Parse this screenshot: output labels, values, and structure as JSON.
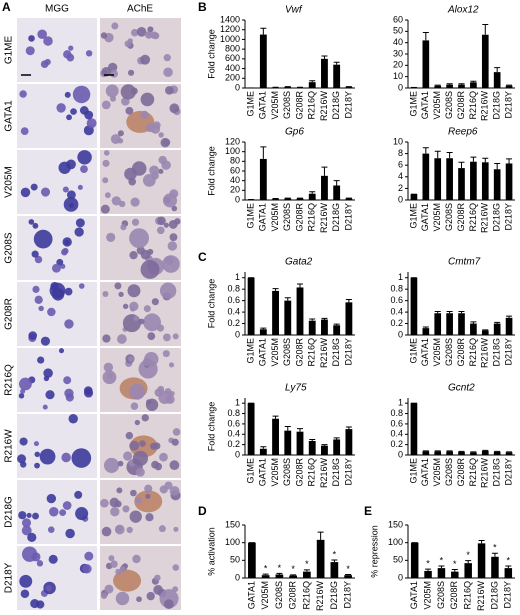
{
  "panel_labels": [
    "A",
    "B",
    "C",
    "D",
    "E"
  ],
  "micrographs": {
    "columns": [
      "MGG",
      "AChE"
    ],
    "rows": [
      "G1ME",
      "GATA1",
      "V205M",
      "G208S",
      "G208R",
      "R216Q",
      "R216W",
      "D218G",
      "D218Y"
    ]
  },
  "chart_data": [
    {
      "type": "bar",
      "title": "Vwf",
      "ylabel": "Fold change",
      "color": "#000000",
      "categories": [
        "G1ME",
        "GATA1",
        "V205M",
        "G208S",
        "G208R",
        "R216Q",
        "R216W",
        "D218G",
        "D218Y"
      ],
      "values": [
        1,
        1100,
        10,
        20,
        10,
        120,
        600,
        480,
        20
      ],
      "errors": [
        0,
        130,
        5,
        8,
        5,
        30,
        60,
        50,
        8
      ],
      "ylim": [
        0,
        1400
      ],
      "yticks": [
        0,
        200,
        400,
        600,
        800,
        1000,
        1200,
        1400
      ]
    },
    {
      "type": "bar",
      "title": "Alox12",
      "color": "#000000",
      "categories": [
        "G1ME",
        "GATA1",
        "V205M",
        "G208S",
        "G208R",
        "R216Q",
        "R216W",
        "D218G",
        "D218Y"
      ],
      "values": [
        0.5,
        42,
        2,
        3,
        3,
        5,
        47,
        14,
        2
      ],
      "errors": [
        0,
        7,
        0.5,
        0.8,
        0.8,
        1,
        9,
        4,
        0.5
      ],
      "ylim": [
        0,
        60
      ],
      "yticks": [
        0,
        10,
        20,
        30,
        40,
        50,
        60
      ]
    },
    {
      "type": "bar",
      "title": "Gp6",
      "ylabel": "Fold change",
      "color": "#000000",
      "categories": [
        "G1ME",
        "GATA1",
        "V205M",
        "G208S",
        "G208R",
        "R216Q",
        "R216W",
        "D218G",
        "D218Y"
      ],
      "values": [
        1,
        85,
        2,
        3,
        3,
        13,
        50,
        30,
        3
      ],
      "errors": [
        0,
        25,
        1,
        1,
        1,
        4,
        18,
        10,
        1
      ],
      "ylim": [
        0,
        120
      ],
      "yticks": [
        0,
        20,
        40,
        60,
        80,
        100,
        120
      ]
    },
    {
      "type": "bar",
      "title": "Reep6",
      "color": "#000000",
      "categories": [
        "G1ME",
        "GATA1",
        "V205M",
        "G208S",
        "G208R",
        "R216Q",
        "R216W",
        "D218G",
        "D218Y"
      ],
      "values": [
        1,
        8,
        7.2,
        7.2,
        5.5,
        6.6,
        6.5,
        5.3,
        6.3
      ],
      "errors": [
        0,
        1,
        1.2,
        1,
        1,
        0.8,
        0.7,
        1,
        0.8
      ],
      "ylim": [
        0,
        10
      ],
      "yticks": [
        0,
        2,
        4,
        6,
        8,
        10
      ]
    },
    {
      "type": "bar",
      "title": "Gata2",
      "ylabel": "Fold change",
      "color": "#000000",
      "categories": [
        "G1ME",
        "GATA1",
        "V205M",
        "G208S",
        "G208R",
        "R216Q",
        "R216W",
        "D218G",
        "D218Y"
      ],
      "values": [
        1,
        0.1,
        0.77,
        0.6,
        0.83,
        0.25,
        0.27,
        0.17,
        0.57
      ],
      "errors": [
        0,
        0.02,
        0.04,
        0.05,
        0.06,
        0.03,
        0.02,
        0.02,
        0.05
      ],
      "ylim": [
        0,
        1.1
      ],
      "yticks": [
        0,
        0.2,
        0.4,
        0.6,
        0.8,
        1
      ]
    },
    {
      "type": "bar",
      "title": "Cmtm7",
      "color": "#000000",
      "categories": [
        "G1ME",
        "GATA1",
        "V205M",
        "G208S",
        "G208R",
        "R216Q",
        "R216W",
        "D218G",
        "D218Y"
      ],
      "values": [
        1,
        0.12,
        0.38,
        0.38,
        0.38,
        0.2,
        0.08,
        0.2,
        0.3
      ],
      "errors": [
        0,
        0.02,
        0.03,
        0.03,
        0.03,
        0.03,
        0.01,
        0.02,
        0.03
      ],
      "ylim": [
        0,
        1.1
      ],
      "yticks": [
        0,
        0.2,
        0.4,
        0.6,
        0.8,
        1
      ]
    },
    {
      "type": "bar",
      "title": "Ly75",
      "ylabel": "Fold change",
      "color": "#000000",
      "categories": [
        "G1ME",
        "GATA1",
        "V205M",
        "G208S",
        "G208R",
        "R216Q",
        "R216W",
        "D218G",
        "D218Y"
      ],
      "values": [
        1,
        0.12,
        0.7,
        0.47,
        0.45,
        0.27,
        0.18,
        0.3,
        0.5
      ],
      "errors": [
        0,
        0.04,
        0.05,
        0.08,
        0.06,
        0.03,
        0.02,
        0.03,
        0.04
      ],
      "ylim": [
        0,
        1.1
      ],
      "yticks": [
        0,
        0.2,
        0.4,
        0.6,
        0.8,
        1
      ]
    },
    {
      "type": "bar",
      "title": "Gcnt2",
      "color": "#000000",
      "categories": [
        "G1ME",
        "GATA1",
        "V205M",
        "G208S",
        "G208R",
        "R216Q",
        "R216W",
        "D218G",
        "D218Y"
      ],
      "values": [
        1,
        0.07,
        0.07,
        0.07,
        0.06,
        0.05,
        0.08,
        0.06,
        0.05
      ],
      "errors": [
        0,
        0.01,
        0.01,
        0.01,
        0.01,
        0.01,
        0.01,
        0.01,
        0.01
      ],
      "ylim": [
        0,
        1.1
      ],
      "yticks": [
        0,
        0.2,
        0.4,
        0.6,
        0.8,
        1
      ]
    },
    {
      "type": "bar",
      "ylabel": "% activation",
      "color": "#000000",
      "categories": [
        "GATA1",
        "V205M",
        "G208S",
        "G208R",
        "R216Q",
        "R216W",
        "D218G",
        "D218Y"
      ],
      "values": [
        100,
        8,
        10,
        7,
        18,
        108,
        45,
        8
      ],
      "errors": [
        0,
        3,
        3,
        2,
        5,
        22,
        6,
        2
      ],
      "markers": [
        null,
        "*",
        "*",
        "*",
        "*",
        null,
        "*",
        "*"
      ],
      "ylim": [
        0,
        150
      ],
      "yticks": [
        0,
        50,
        100,
        150
      ]
    },
    {
      "type": "bar",
      "ylabel": "% repression",
      "color": "#000000",
      "categories": [
        "GATA1",
        "V205M",
        "G208S",
        "G208R",
        "R216Q",
        "R216W",
        "D218G",
        "D218Y"
      ],
      "values": [
        100,
        20,
        28,
        18,
        42,
        98,
        60,
        28
      ],
      "errors": [
        0,
        5,
        6,
        6,
        7,
        8,
        10,
        6
      ],
      "markers": [
        null,
        "*",
        "*",
        "*",
        "*",
        null,
        "*",
        "*"
      ],
      "ylim": [
        0,
        150
      ],
      "yticks": [
        0,
        50,
        100,
        150
      ]
    }
  ]
}
